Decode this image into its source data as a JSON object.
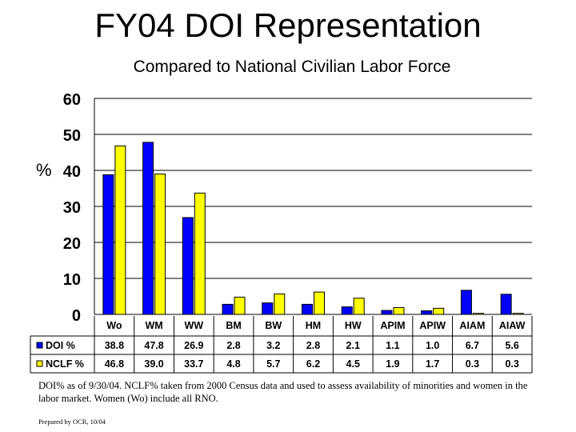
{
  "chart_data": {
    "type": "bar",
    "title": "FY04 DOI Representation",
    "subtitle": "Compared to National Civilian Labor Force",
    "ylabel": "%",
    "xlabel": "",
    "ylim": [
      0,
      60
    ],
    "yticks": [
      0,
      10,
      20,
      30,
      40,
      50,
      60
    ],
    "grid": true,
    "legend": "data-table",
    "categories": [
      "Wo",
      "WM",
      "WW",
      "BM",
      "BW",
      "HM",
      "HW",
      "APIM",
      "APIW",
      "AIAM",
      "AIAW"
    ],
    "series": [
      {
        "name": "DOI %",
        "color": "#0000ff",
        "values": [
          38.8,
          47.8,
          26.9,
          2.8,
          3.2,
          2.8,
          2.1,
          1.1,
          1.0,
          6.7,
          5.6
        ],
        "labels": [
          "38.8",
          "47.8",
          "26.9",
          "2.8",
          "3.2",
          "2.8",
          "2.1",
          "1.1",
          "1.0",
          "6.7",
          "5.6"
        ]
      },
      {
        "name": "NCLF %",
        "color": "#ffff00",
        "values": [
          46.8,
          39.0,
          33.7,
          4.8,
          5.7,
          6.2,
          4.5,
          1.9,
          1.7,
          0.3,
          0.3
        ],
        "labels": [
          "46.8",
          "39.0",
          "33.7",
          "4.8",
          "5.7",
          "6.2",
          "4.5",
          "1.9",
          "1.7",
          "0.3",
          "0.3"
        ]
      }
    ]
  },
  "footnote": "DOI% as of 9/30/04.  NCLF% taken from 2000 Census data and used to assess availability of minorities and women in the labor market.  Women (Wo) include all RNO.",
  "prepared": "Prepared by OCR, 10/04"
}
